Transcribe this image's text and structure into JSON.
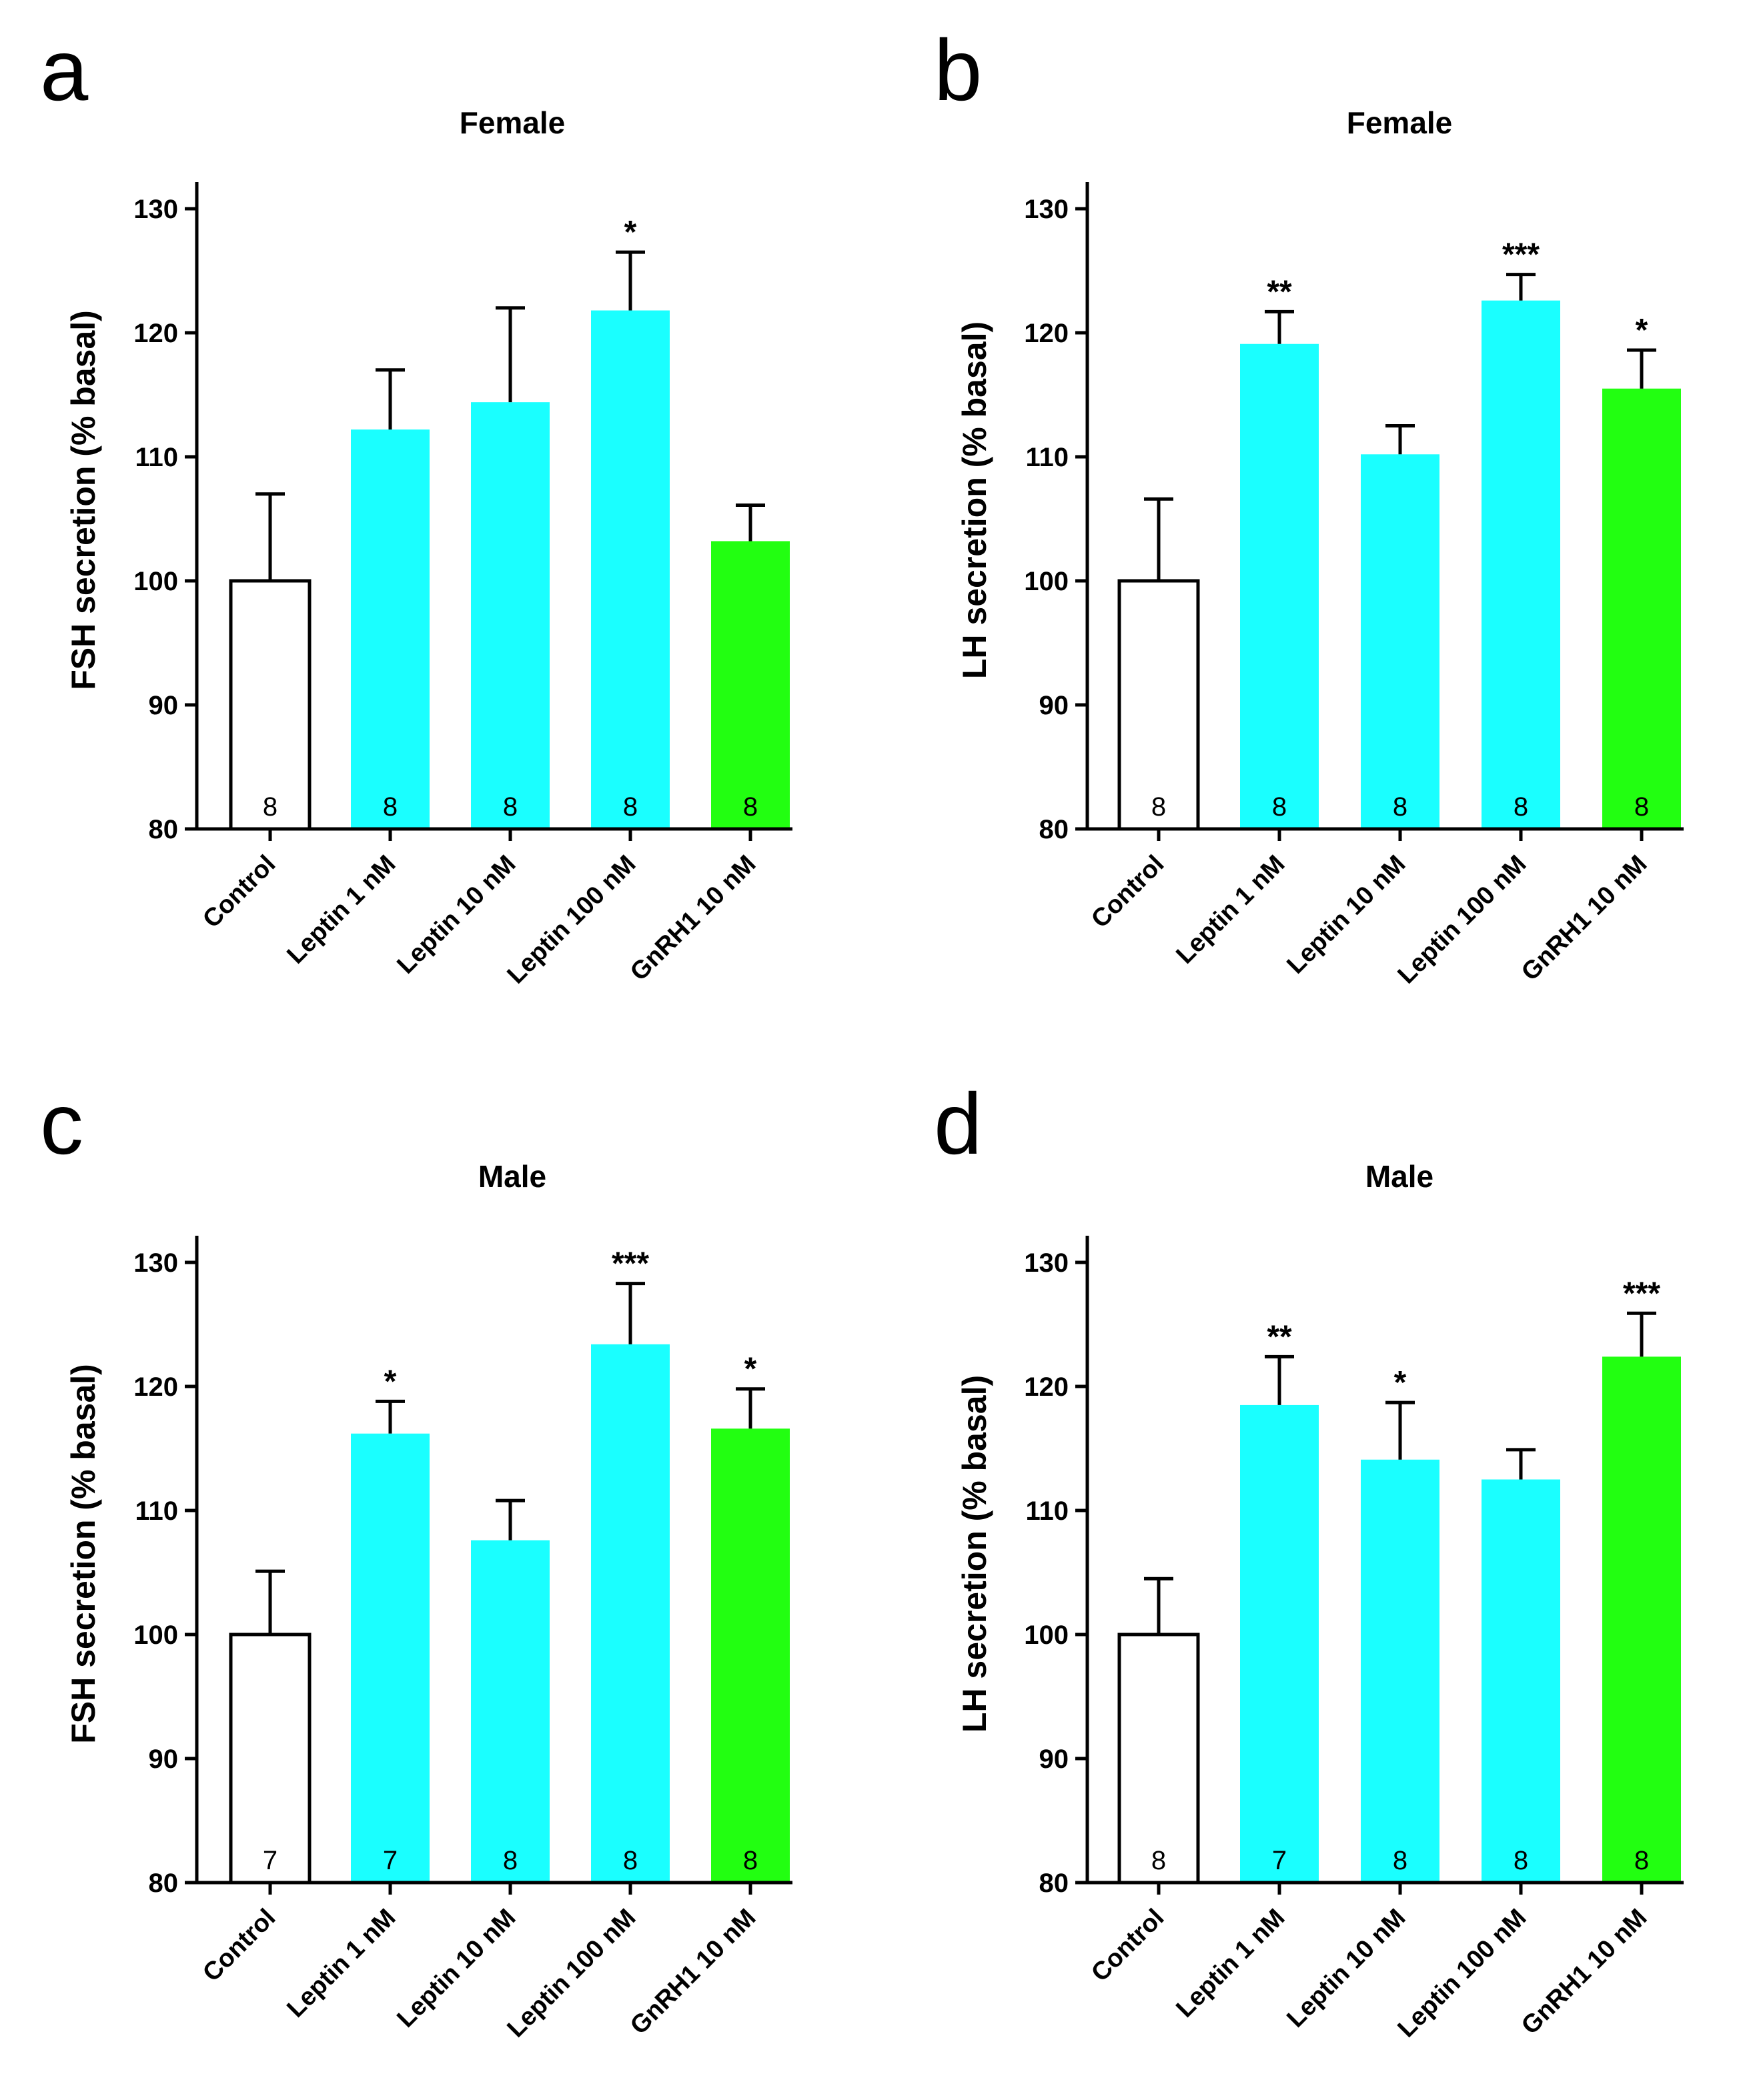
{
  "colors": {
    "control": "#ffffff",
    "leptin": "#1affff",
    "gnrh": "#22ff11",
    "axis": "#000000"
  },
  "chart_data": [
    {
      "type": "bar",
      "panel": "a",
      "title": "Female",
      "ylabel": "FSH secretion (% basal)",
      "xlabel": "",
      "ylim": [
        80,
        130
      ],
      "yticks": [
        "80",
        "90",
        "100",
        "110",
        "120",
        "130"
      ],
      "categories": [
        "Control",
        "Leptin 1 nM",
        "Leptin 10 nM",
        "Leptin 100 nM",
        "GnRH1 10 nM"
      ],
      "values": [
        100,
        112.2,
        114.4,
        121.8,
        103.2
      ],
      "errors": [
        7.0,
        4.8,
        7.6,
        4.7,
        2.9
      ],
      "n": [
        "8",
        "8",
        "8",
        "8",
        "8"
      ],
      "significance": [
        "",
        "",
        "",
        "*",
        ""
      ],
      "bar_colors": [
        "control",
        "leptin",
        "leptin",
        "leptin",
        "gnrh"
      ]
    },
    {
      "type": "bar",
      "panel": "b",
      "title": "Female",
      "ylabel": "LH secretion (% basal)",
      "xlabel": "",
      "ylim": [
        80,
        130
      ],
      "yticks": [
        "80",
        "90",
        "100",
        "110",
        "120",
        "130"
      ],
      "categories": [
        "Control",
        "Leptin 1 nM",
        "Leptin 10 nM",
        "Leptin 100 nM",
        "GnRH1 10 nM"
      ],
      "values": [
        100,
        119.1,
        110.2,
        122.6,
        115.5
      ],
      "errors": [
        6.6,
        2.6,
        2.3,
        2.1,
        3.1
      ],
      "n": [
        "8",
        "8",
        "8",
        "8",
        "8"
      ],
      "significance": [
        "",
        "**",
        "",
        "***",
        "*"
      ],
      "bar_colors": [
        "control",
        "leptin",
        "leptin",
        "leptin",
        "gnrh"
      ]
    },
    {
      "type": "bar",
      "panel": "c",
      "title": "Male",
      "ylabel": "FSH secretion (% basal)",
      "xlabel": "",
      "ylim": [
        80,
        130
      ],
      "yticks": [
        "80",
        "90",
        "100",
        "110",
        "120",
        "130"
      ],
      "categories": [
        "Control",
        "Leptin 1 nM",
        "Leptin 10 nM",
        "Leptin 100 nM",
        "GnRH1 10 nM"
      ],
      "values": [
        100,
        116.2,
        107.6,
        123.4,
        116.6
      ],
      "errors": [
        5.1,
        2.6,
        3.2,
        4.9,
        3.2
      ],
      "n": [
        "7",
        "7",
        "8",
        "8",
        "8"
      ],
      "significance": [
        "",
        "*",
        "",
        "***",
        "*"
      ],
      "bar_colors": [
        "control",
        "leptin",
        "leptin",
        "leptin",
        "gnrh"
      ]
    },
    {
      "type": "bar",
      "panel": "d",
      "title": "Male",
      "ylabel": "LH secretion (% basal)",
      "xlabel": "",
      "ylim": [
        80,
        130
      ],
      "yticks": [
        "80",
        "90",
        "100",
        "110",
        "120",
        "130"
      ],
      "categories": [
        "Control",
        "Leptin 1 nM",
        "Leptin 10 nM",
        "Leptin 100 nM",
        "GnRH1 10 nM"
      ],
      "values": [
        100,
        118.5,
        114.1,
        112.5,
        122.4
      ],
      "errors": [
        4.5,
        3.9,
        4.6,
        2.4,
        3.5
      ],
      "n": [
        "8",
        "7",
        "8",
        "8",
        "8"
      ],
      "significance": [
        "",
        "**",
        "*",
        "",
        "***"
      ],
      "bar_colors": [
        "control",
        "leptin",
        "leptin",
        "leptin",
        "gnrh"
      ]
    }
  ]
}
